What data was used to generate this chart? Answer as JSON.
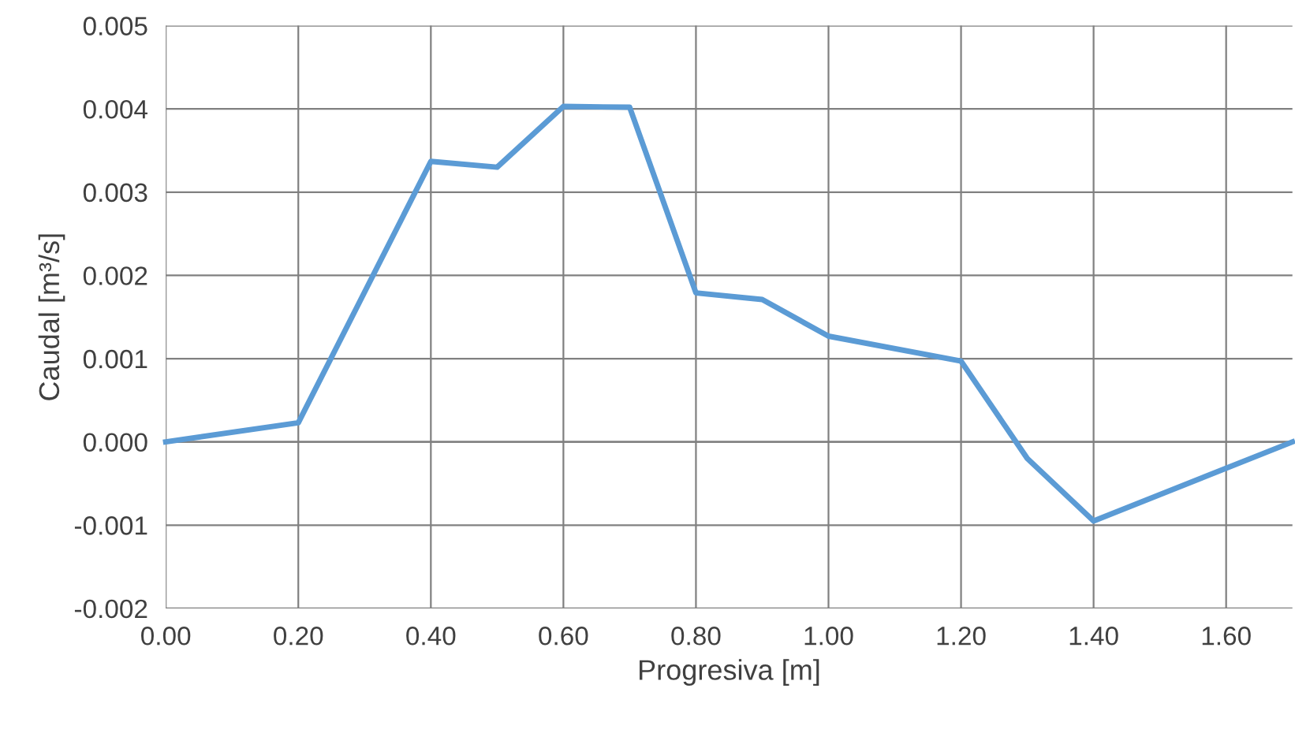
{
  "chart_data": {
    "type": "line",
    "xlabel": "Progresiva [m]",
    "ylabel": "Caudal [m³/s]",
    "x": [
      0.0,
      0.2,
      0.4,
      0.5,
      0.6,
      0.7,
      0.8,
      0.9,
      1.0,
      1.2,
      1.3,
      1.4,
      1.7
    ],
    "series": [
      {
        "color": "#5b9bd5",
        "values": [
          0.0,
          0.00023,
          0.00337,
          0.0033,
          0.00403,
          0.00402,
          0.00179,
          0.00171,
          0.00127,
          0.00097,
          -0.0002,
          -0.00095,
          0.0
        ]
      }
    ],
    "xlim": [
      0,
      1.7
    ],
    "xticks": [
      {
        "value": 0,
        "label": "0.00"
      },
      {
        "value": 0.2,
        "label": "0.20"
      },
      {
        "value": 0.4,
        "label": "0.40"
      },
      {
        "value": 0.6,
        "label": "0.60"
      },
      {
        "value": 0.8,
        "label": "0.80"
      },
      {
        "value": 1.0,
        "label": "1.00"
      },
      {
        "value": 1.2,
        "label": "1.20"
      },
      {
        "value": 1.4,
        "label": "1.40"
      },
      {
        "value": 1.6,
        "label": "1.60"
      }
    ],
    "ylim": [
      -0.002,
      0.005
    ],
    "yticks": [
      {
        "value": -0.002,
        "label": "-0.002"
      },
      {
        "value": -0.001,
        "label": "-0.001"
      },
      {
        "value": 0,
        "label": "0.000"
      },
      {
        "value": 0.001,
        "label": "0.001"
      },
      {
        "value": 0.002,
        "label": "0.002"
      },
      {
        "value": 0.003,
        "label": "0.003"
      },
      {
        "value": 0.004,
        "label": "0.004"
      },
      {
        "value": 0.005,
        "label": "0.005"
      }
    ],
    "grid": true,
    "marker": "none",
    "line_style": "solid"
  }
}
